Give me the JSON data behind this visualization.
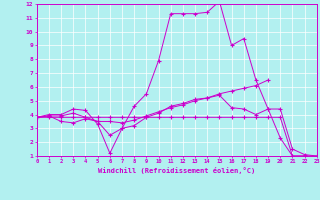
{
  "xlabel": "Windchill (Refroidissement éolien,°C)",
  "bg_color": "#b2f0f0",
  "grid_color": "#ffffff",
  "line_color": "#cc00cc",
  "xmin": 0,
  "xmax": 23,
  "ymin": 1,
  "ymax": 12,
  "lines": [
    {
      "x": [
        0,
        1,
        2,
        3,
        4,
        5,
        6,
        7,
        8,
        9,
        10,
        11,
        12,
        13,
        14,
        15,
        16,
        17,
        18,
        19,
        20,
        21,
        22
      ],
      "y": [
        3.8,
        4.0,
        4.0,
        4.4,
        4.3,
        3.3,
        1.2,
        3.0,
        4.6,
        5.5,
        7.9,
        11.3,
        11.3,
        11.3,
        11.4,
        12.2,
        9.0,
        9.5,
        6.5,
        4.4,
        2.3,
        1.0,
        1.0
      ]
    },
    {
      "x": [
        0,
        1,
        2,
        3,
        4,
        5,
        6,
        7,
        8,
        9,
        10,
        11,
        12,
        13,
        14,
        15,
        16,
        17,
        18,
        19
      ],
      "y": [
        3.8,
        3.9,
        3.5,
        3.4,
        3.7,
        3.5,
        3.5,
        3.4,
        3.6,
        3.9,
        4.2,
        4.5,
        4.7,
        5.0,
        5.2,
        5.5,
        5.7,
        5.9,
        6.1,
        6.5
      ]
    },
    {
      "x": [
        0,
        1,
        2,
        3,
        4,
        5,
        6,
        7,
        8,
        9,
        10,
        11,
        12,
        13,
        14,
        15,
        16,
        17,
        18,
        19,
        20,
        21,
        22,
        23
      ],
      "y": [
        3.8,
        3.8,
        3.8,
        3.8,
        3.8,
        3.8,
        3.8,
        3.8,
        3.8,
        3.8,
        3.8,
        3.8,
        3.8,
        3.8,
        3.8,
        3.8,
        3.8,
        3.8,
        3.8,
        3.8,
        3.8,
        1.0,
        1.0,
        1.0
      ]
    },
    {
      "x": [
        0,
        1,
        2,
        3,
        4,
        5,
        6,
        7,
        8,
        9,
        10,
        11,
        12,
        13,
        14,
        15,
        16,
        17,
        18,
        19,
        20,
        21,
        22,
        23
      ],
      "y": [
        3.8,
        3.9,
        3.9,
        4.1,
        3.8,
        3.5,
        2.5,
        3.0,
        3.2,
        3.8,
        4.1,
        4.6,
        4.8,
        5.1,
        5.2,
        5.4,
        4.5,
        4.4,
        4.0,
        4.4,
        4.4,
        1.5,
        1.1,
        1.0
      ]
    }
  ]
}
